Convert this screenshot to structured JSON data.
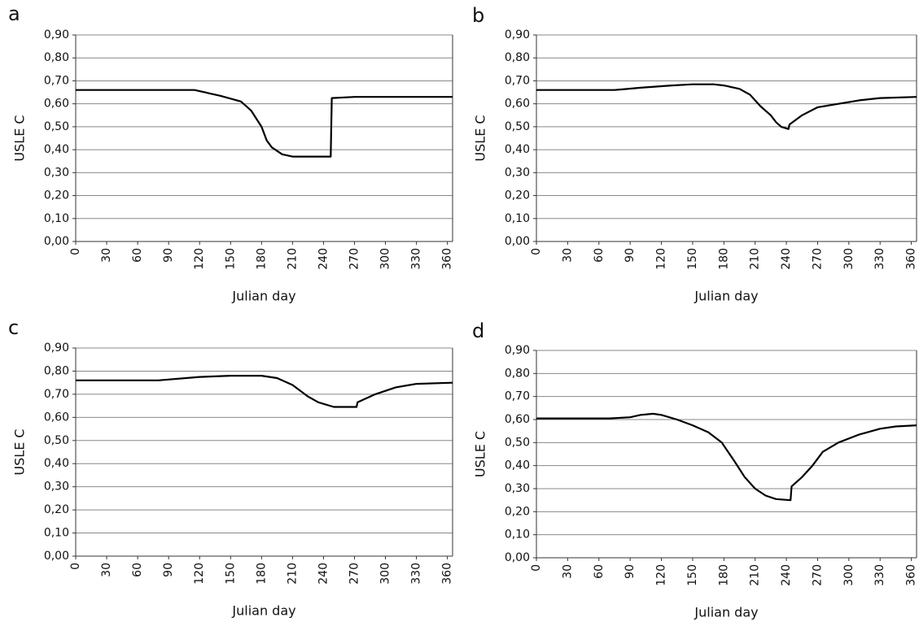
{
  "chart_data": [
    {
      "type": "line",
      "label": "a",
      "xlabel": "Julian day",
      "ylabel": "USLE C",
      "grid": true,
      "color": "#000000",
      "xlim": [
        0,
        365
      ],
      "ylim": [
        0,
        0.9
      ],
      "xticks": [
        0,
        30,
        60,
        90,
        120,
        150,
        180,
        210,
        240,
        270,
        300,
        330,
        360
      ],
      "yticks": [
        {
          "value": 0,
          "label": "0,00"
        },
        {
          "value": 0.1,
          "label": "0,10"
        },
        {
          "value": 0.2,
          "label": "0,20"
        },
        {
          "value": 0.3,
          "label": "0,30"
        },
        {
          "value": 0.4,
          "label": "0,40"
        },
        {
          "value": 0.5,
          "label": "0,50"
        },
        {
          "value": 0.6,
          "label": "0,60"
        },
        {
          "value": 0.7,
          "label": "0,70"
        },
        {
          "value": 0.8,
          "label": "0,80"
        },
        {
          "value": 0.9,
          "label": "0,90"
        }
      ],
      "x": [
        0,
        115,
        120,
        140,
        160,
        170,
        180,
        185,
        190,
        200,
        210,
        247,
        248,
        270,
        290,
        365
      ],
      "values": [
        0.66,
        0.66,
        0.655,
        0.635,
        0.61,
        0.57,
        0.5,
        0.44,
        0.41,
        0.38,
        0.37,
        0.37,
        0.625,
        0.63,
        0.63,
        0.63
      ]
    },
    {
      "type": "line",
      "label": "b",
      "xlabel": "Julian day",
      "ylabel": "USLE C",
      "grid": true,
      "color": "#000000",
      "xlim": [
        0,
        365
      ],
      "ylim": [
        0,
        0.9
      ],
      "xticks": [
        0,
        30,
        60,
        90,
        120,
        150,
        180,
        210,
        240,
        270,
        300,
        330,
        360
      ],
      "yticks": [
        {
          "value": 0,
          "label": "0,00"
        },
        {
          "value": 0.1,
          "label": "0,10"
        },
        {
          "value": 0.2,
          "label": "0,20"
        },
        {
          "value": 0.3,
          "label": "0,30"
        },
        {
          "value": 0.4,
          "label": "0,40"
        },
        {
          "value": 0.5,
          "label": "0,50"
        },
        {
          "value": 0.6,
          "label": "0,60"
        },
        {
          "value": 0.7,
          "label": "0,70"
        },
        {
          "value": 0.8,
          "label": "0,80"
        },
        {
          "value": 0.9,
          "label": "0,90"
        }
      ],
      "x": [
        0,
        75,
        100,
        130,
        150,
        170,
        180,
        195,
        205,
        215,
        225,
        230,
        235,
        242,
        243,
        255,
        270,
        290,
        310,
        330,
        365
      ],
      "values": [
        0.66,
        0.66,
        0.67,
        0.68,
        0.685,
        0.685,
        0.68,
        0.665,
        0.64,
        0.59,
        0.55,
        0.52,
        0.5,
        0.49,
        0.51,
        0.55,
        0.585,
        0.6,
        0.615,
        0.625,
        0.63
      ]
    },
    {
      "type": "line",
      "label": "c",
      "xlabel": "Julian day",
      "ylabel": "USLE C",
      "grid": true,
      "color": "#000000",
      "xlim": [
        0,
        365
      ],
      "ylim": [
        0,
        0.9
      ],
      "xticks": [
        0,
        30,
        60,
        90,
        120,
        150,
        180,
        210,
        240,
        270,
        300,
        330,
        360
      ],
      "yticks": [
        {
          "value": 0,
          "label": "0,00"
        },
        {
          "value": 0.1,
          "label": "0,10"
        },
        {
          "value": 0.2,
          "label": "0,20"
        },
        {
          "value": 0.3,
          "label": "0,30"
        },
        {
          "value": 0.4,
          "label": "0,40"
        },
        {
          "value": 0.5,
          "label": "0,50"
        },
        {
          "value": 0.6,
          "label": "0,60"
        },
        {
          "value": 0.7,
          "label": "0,70"
        },
        {
          "value": 0.8,
          "label": "0,80"
        },
        {
          "value": 0.9,
          "label": "0,90"
        }
      ],
      "x": [
        0,
        80,
        120,
        150,
        180,
        195,
        210,
        225,
        235,
        250,
        272,
        273,
        290,
        310,
        330,
        365
      ],
      "values": [
        0.76,
        0.76,
        0.775,
        0.78,
        0.78,
        0.77,
        0.74,
        0.69,
        0.665,
        0.645,
        0.645,
        0.665,
        0.7,
        0.73,
        0.745,
        0.75
      ]
    },
    {
      "type": "line",
      "label": "d",
      "xlabel": "Julian day",
      "ylabel": "USLE C",
      "grid": true,
      "color": "#000000",
      "xlim": [
        0,
        365
      ],
      "ylim": [
        0,
        0.9
      ],
      "xticks": [
        0,
        30,
        60,
        90,
        120,
        150,
        180,
        210,
        240,
        270,
        300,
        330,
        360
      ],
      "yticks": [
        {
          "value": 0,
          "label": "0,00"
        },
        {
          "value": 0.1,
          "label": "0,10"
        },
        {
          "value": 0.2,
          "label": "0,20"
        },
        {
          "value": 0.3,
          "label": "0,30"
        },
        {
          "value": 0.4,
          "label": "0,40"
        },
        {
          "value": 0.5,
          "label": "0,50"
        },
        {
          "value": 0.6,
          "label": "0,60"
        },
        {
          "value": 0.7,
          "label": "0,70"
        },
        {
          "value": 0.8,
          "label": "0,80"
        },
        {
          "value": 0.9,
          "label": "0,90"
        }
      ],
      "x": [
        0,
        70,
        90,
        100,
        112,
        120,
        135,
        150,
        165,
        178,
        190,
        200,
        210,
        220,
        230,
        244,
        245,
        255,
        265,
        275,
        290,
        310,
        330,
        345,
        365
      ],
      "values": [
        0.605,
        0.605,
        0.61,
        0.62,
        0.625,
        0.62,
        0.6,
        0.575,
        0.545,
        0.5,
        0.42,
        0.35,
        0.3,
        0.27,
        0.255,
        0.25,
        0.31,
        0.35,
        0.4,
        0.46,
        0.5,
        0.535,
        0.56,
        0.57,
        0.575
      ]
    }
  ]
}
